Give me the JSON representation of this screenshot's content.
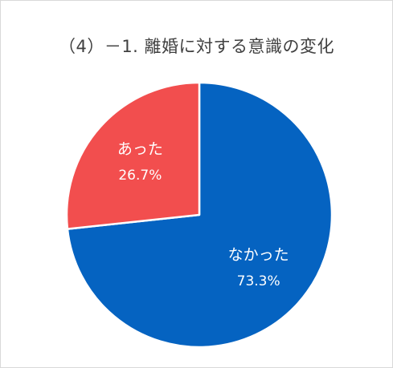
{
  "chart_data": {
    "type": "pie",
    "title": "（4）－1. 離婚に対する意識の変化",
    "slices": [
      {
        "label": "なかった",
        "value": 73.3,
        "value_label": "73.3%",
        "color": "#0563c1"
      },
      {
        "label": "あった",
        "value": 26.7,
        "value_label": "26.7%",
        "color": "#f24e4e"
      }
    ],
    "start": "12 o'clock",
    "direction": "clockwise",
    "legend": "none",
    "data_labels": "inside"
  }
}
